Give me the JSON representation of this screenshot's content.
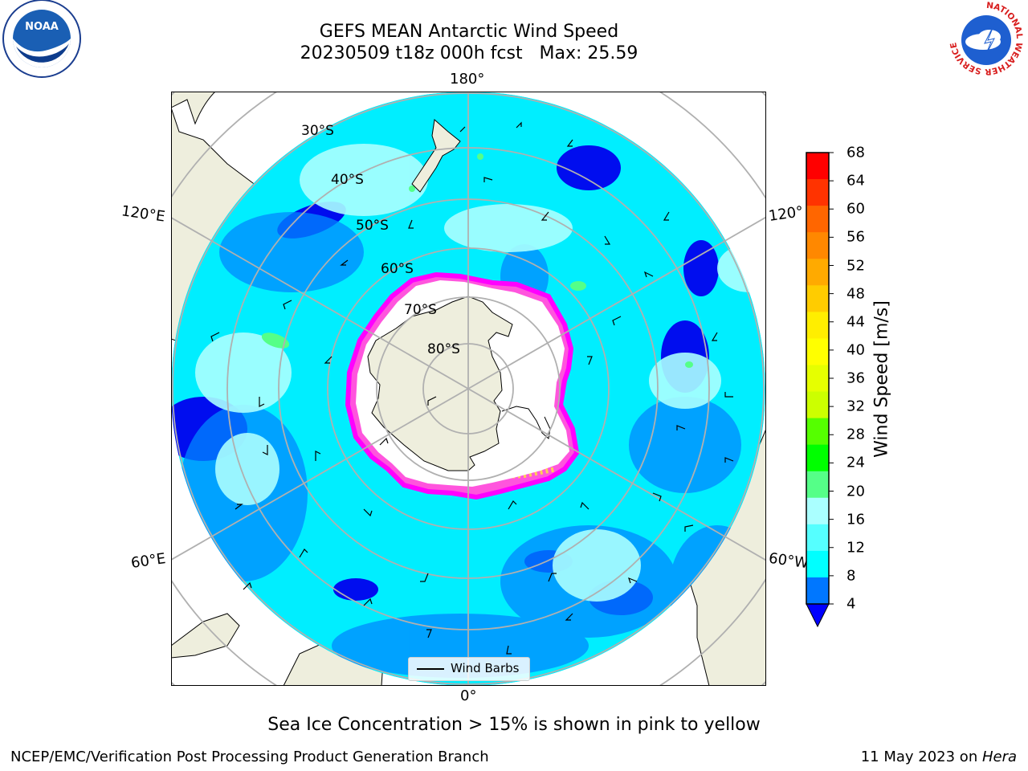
{
  "title": {
    "line1": "GEFS MEAN Antarctic Wind Speed",
    "line2": "20230509 t18z 000h fcst   Max: 25.59"
  },
  "map": {
    "projection": "south-polar-stereographic",
    "longitude_labels": {
      "top": "180°",
      "bottom": "0°",
      "left_upper": "120°E",
      "left_lower": "60°E",
      "right_upper": "120°",
      "right_lower": "60°W"
    },
    "latitude_labels": [
      "30°S",
      "40°S",
      "50°S",
      "60°S",
      "70°S",
      "80°S"
    ],
    "wind_speed_field_colors": [
      "#0000ff",
      "#0077ff",
      "#00ffff",
      "#55ffff",
      "#aaffff",
      "#55ff88"
    ],
    "sea_ice_colors": [
      "#ff00ff",
      "#ffaa55",
      "#ffff00"
    ],
    "land_color": "#eeeedd"
  },
  "colorbar": {
    "label": "Wind Speed [m/s]",
    "ticks": [
      "68",
      "64",
      "60",
      "56",
      "52",
      "48",
      "44",
      "40",
      "36",
      "32",
      "28",
      "24",
      "20",
      "16",
      "12",
      "8",
      "4"
    ],
    "colors_top_to_bottom": [
      "#ff0000",
      "#ff3300",
      "#ff6600",
      "#ff8800",
      "#ffaa00",
      "#ffcc00",
      "#ffee00",
      "#ffff00",
      "#e6ff00",
      "#ccff00",
      "#55ff00",
      "#00ff00",
      "#55ff88",
      "#aaffff",
      "#55ffff",
      "#00ffff",
      "#0077ff"
    ],
    "extend_color": "#0000ff"
  },
  "legend": {
    "label": "Wind Barbs"
  },
  "footer": {
    "ice_note": "Sea Ice Concentration > 15% is shown in pink to yellow",
    "credit": "NCEP/EMC/Verification Post Processing Product Generation Branch",
    "date_text": "11 May 2023 on ",
    "host": "Hera"
  },
  "logos": {
    "left": "NOAA",
    "right_ring": "NATIONAL WEATHER SERVICE"
  }
}
